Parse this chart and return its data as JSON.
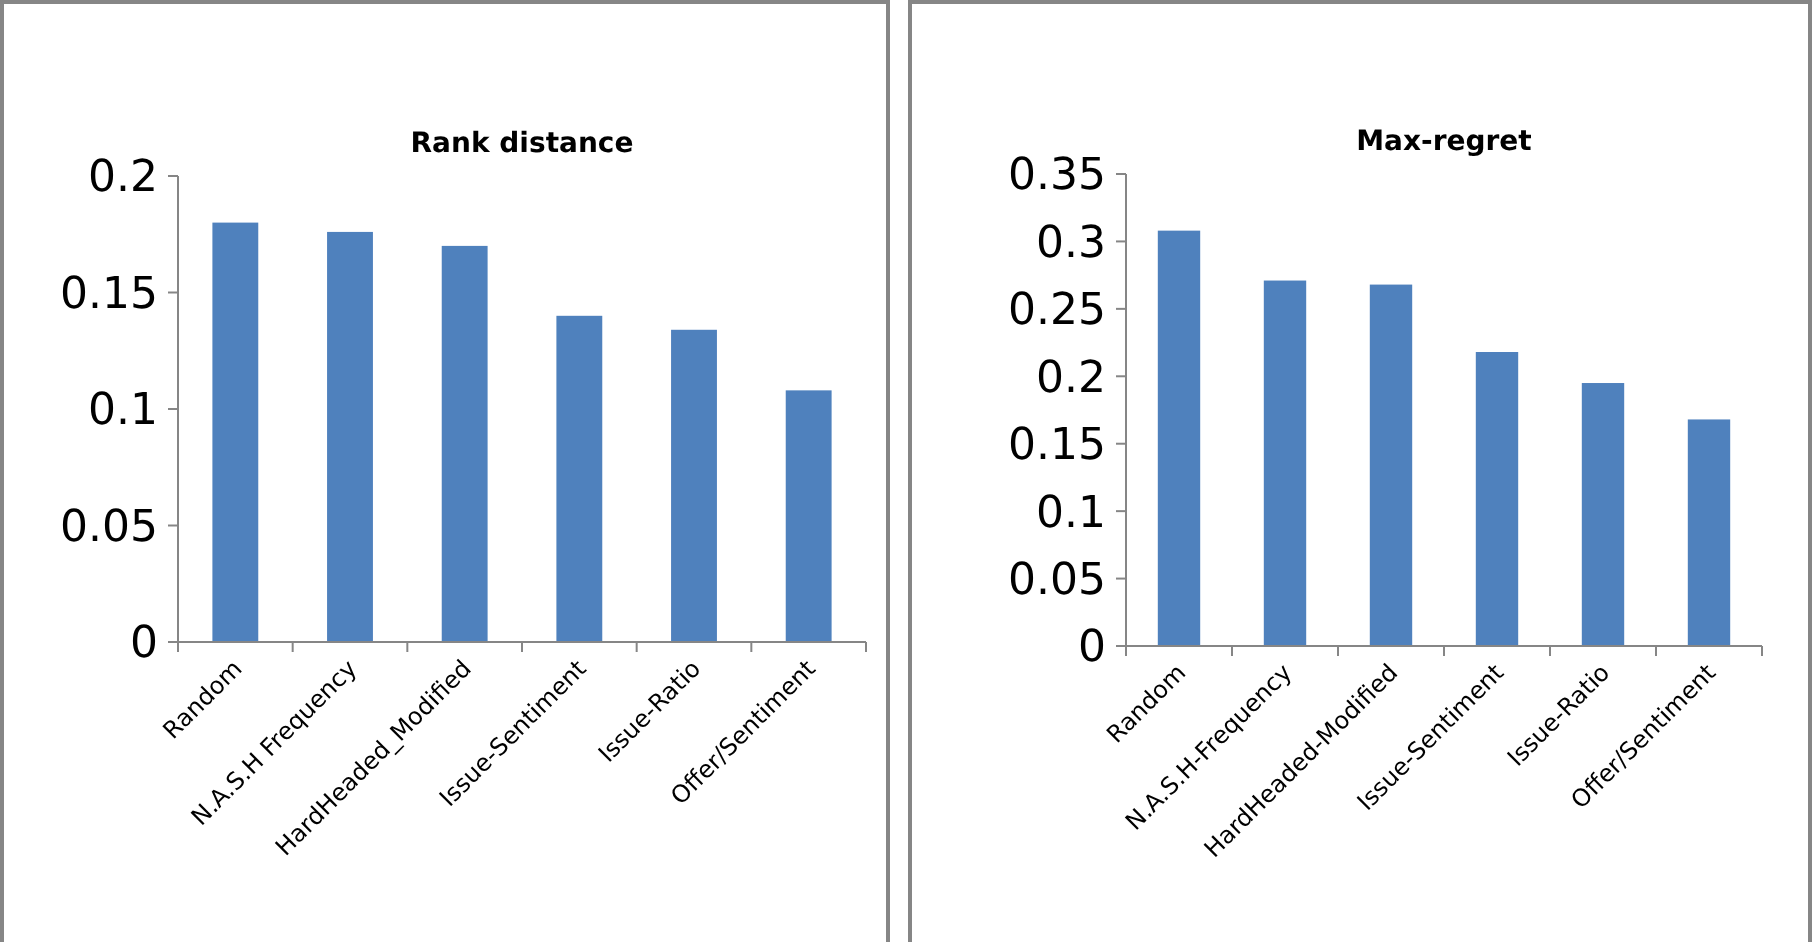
{
  "chart_data": [
    {
      "type": "bar",
      "title": "Rank distance",
      "categories": [
        "Random",
        "N.A.S.H Frequency",
        "HardHeaded_Modified",
        "Issue-Sentiment",
        "Issue-Ratio",
        "Offer/Sentiment"
      ],
      "values": [
        0.18,
        0.176,
        0.17,
        0.14,
        0.134,
        0.108
      ],
      "color": "#4f81bd",
      "ylim": [
        0,
        0.2
      ],
      "yticks": [
        0,
        0.05,
        0.1,
        0.15,
        0.2
      ],
      "grid": false
    },
    {
      "type": "bar",
      "title": "Max-regret",
      "categories": [
        "Random",
        "N.A.S.H-Frequency",
        "HardHeaded-Modified",
        "Issue-Sentiment",
        "Issue-Ratio",
        "Offer/Sentiment"
      ],
      "values": [
        0.308,
        0.271,
        0.268,
        0.218,
        0.195,
        0.168
      ],
      "color": "#4f81bd",
      "ylim": [
        0,
        0.35
      ],
      "yticks": [
        0,
        0.05,
        0.1,
        0.15,
        0.2,
        0.25,
        0.3,
        0.35
      ],
      "grid": false
    }
  ]
}
